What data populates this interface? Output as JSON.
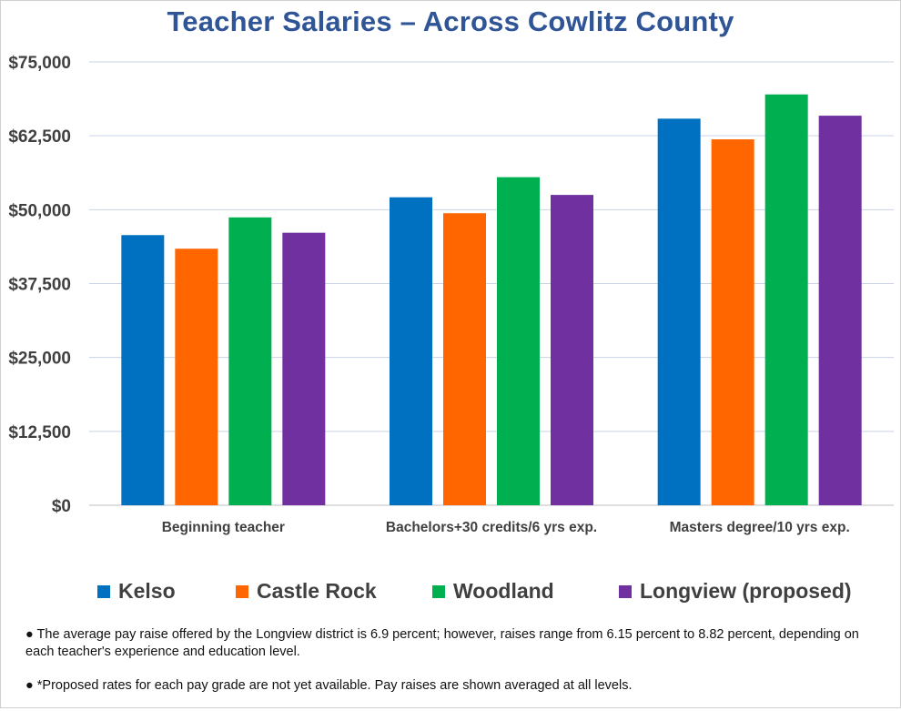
{
  "chart_data": {
    "type": "bar",
    "title": "Teacher Salaries – Across Cowlitz County",
    "categories": [
      "Beginning teacher",
      "Bachelors+30 credits/6 yrs exp.",
      "Masters degree/10 yrs exp."
    ],
    "series": [
      {
        "name": "Kelso",
        "color": "#0070C0",
        "values": [
          45700,
          52100,
          65400
        ]
      },
      {
        "name": "Castle Rock",
        "color": "#FF6600",
        "values": [
          43400,
          49400,
          61900
        ]
      },
      {
        "name": "Woodland",
        "color": "#00B050",
        "values": [
          48700,
          55500,
          69500
        ]
      },
      {
        "name": "Longview (proposed)",
        "color": "#7030A0",
        "values": [
          46100,
          52500,
          65900
        ]
      }
    ],
    "yticks": [
      "$0",
      "$12,500",
      "$25,000",
      "$37,500",
      "$50,000",
      "$62,500",
      "$75,000"
    ],
    "ylim": [
      0,
      75000
    ],
    "grid": true,
    "legend_position": "bottom"
  },
  "notes": [
    "● The average pay raise offered by the Longview district is 6.9 percent; however, raises range from 6.15 percent to 8.82 percent, depending on each teacher's experience and education level.",
    "●  *Proposed rates for each pay grade are not yet available. Pay raises are shown averaged at all levels."
  ]
}
